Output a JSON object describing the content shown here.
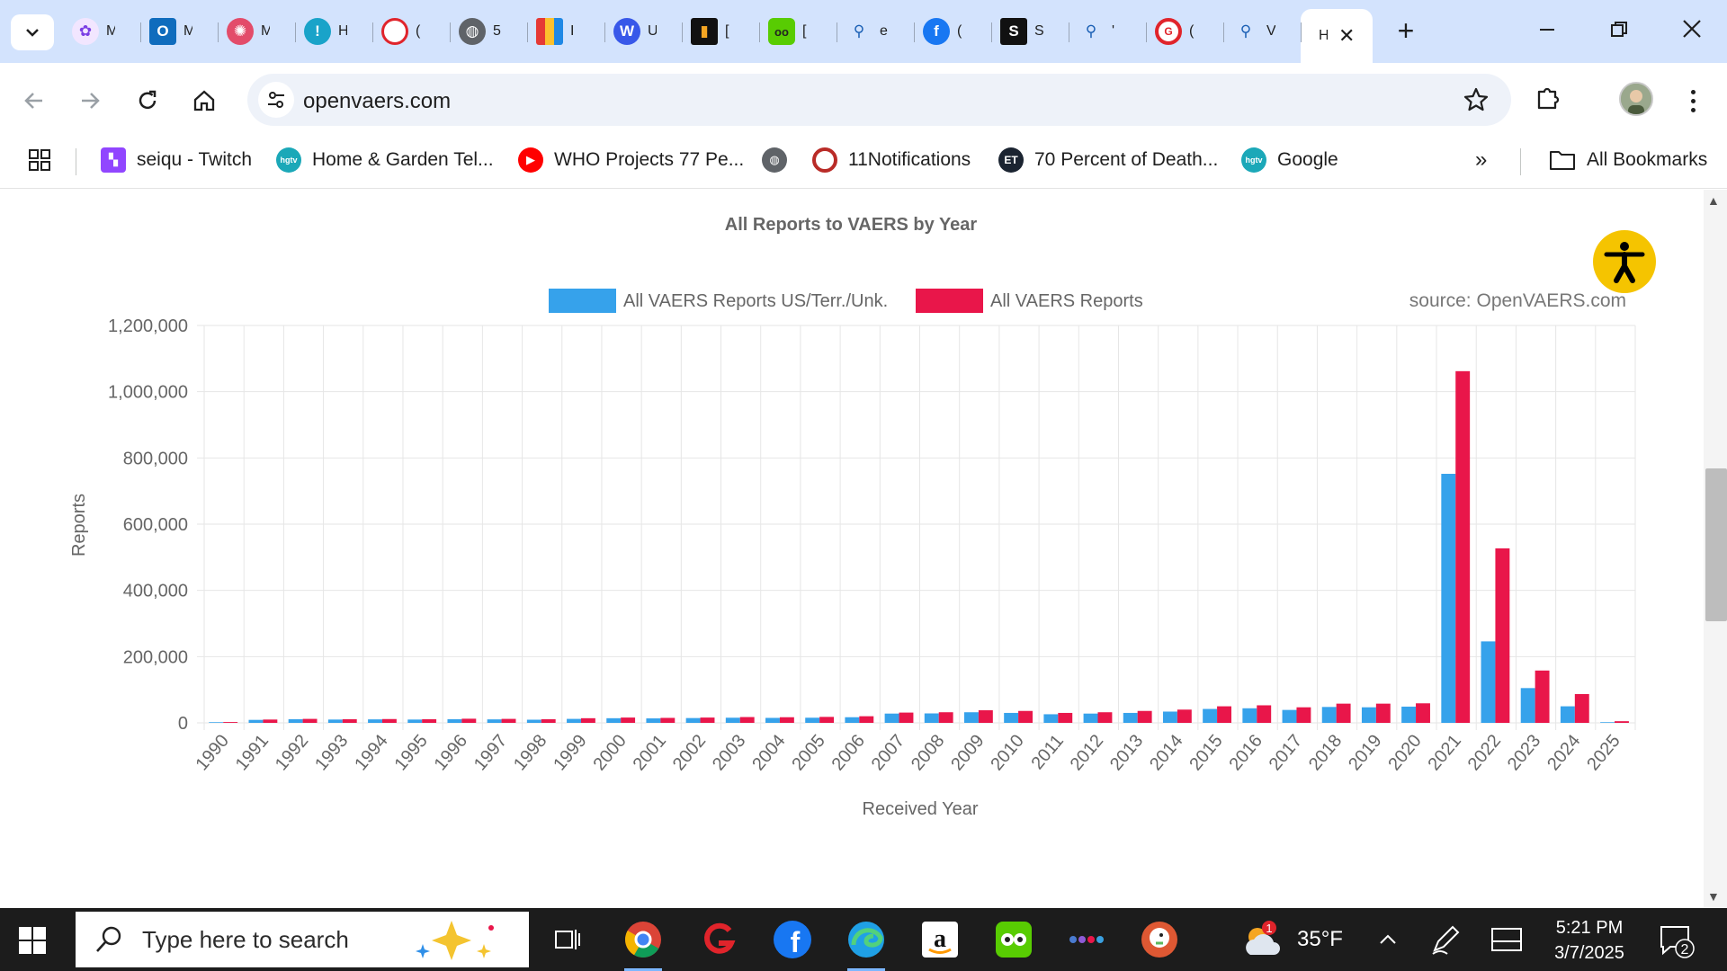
{
  "browser": {
    "tabs": [
      {
        "title": "M",
        "icon": "butterfly-icon"
      },
      {
        "title": "M",
        "icon": "outlook-icon"
      },
      {
        "title": "M",
        "icon": "virus-icon"
      },
      {
        "title": "H",
        "icon": "alert-icon"
      },
      {
        "title": "(",
        "icon": "speech-bubble-icon"
      },
      {
        "title": "5",
        "icon": "globe-icon"
      },
      {
        "title": "I",
        "icon": "shopping-bag-icon"
      },
      {
        "title": "U",
        "icon": "wordpress-icon"
      },
      {
        "title": "[",
        "icon": "candle-icon"
      },
      {
        "title": "[",
        "icon": "duolingo-icon"
      },
      {
        "title": "e",
        "icon": "search-icon"
      },
      {
        "title": "(",
        "icon": "facebook-icon"
      },
      {
        "title": "S",
        "icon": "substack-icon"
      },
      {
        "title": "'",
        "icon": "search-icon"
      },
      {
        "title": "(",
        "icon": "gettr-icon"
      },
      {
        "title": "V",
        "icon": "search-icon"
      }
    ],
    "active_tab": {
      "title": "H",
      "close": "✕"
    },
    "new_tab": "+",
    "url": "openvaers.com"
  },
  "bookmarks": {
    "items": [
      {
        "label": "seiqu - Twitch",
        "icon": "twitch-icon"
      },
      {
        "label": "Home & Garden Tel...",
        "icon": "hgtv-icon"
      },
      {
        "label": "WHO Projects 77 Pe...",
        "icon": "youtube-icon"
      },
      {
        "label": "",
        "icon": "globe-icon"
      },
      {
        "label": "11Notifications",
        "icon": "quora-icon"
      },
      {
        "label": "70 Percent of Death...",
        "icon": "epoch-times-icon"
      },
      {
        "label": "Google",
        "icon": "hgtv-icon"
      }
    ],
    "more": "»",
    "all_bookmarks": "All Bookmarks"
  },
  "chart_data": {
    "type": "bar",
    "title": "All Reports to VAERS by Year",
    "source": "source: OpenVAERS.com",
    "xlabel": "Received Year",
    "ylabel": "Reports",
    "ylim": [
      0,
      1200000
    ],
    "yticks": [
      0,
      200000,
      400000,
      600000,
      800000,
      1000000,
      1200000
    ],
    "ytick_labels": [
      "0",
      "200,000",
      "400,000",
      "600,000",
      "800,000",
      "1,000,000",
      "1,200,000"
    ],
    "grid": true,
    "legend_position": "top",
    "categories": [
      "1990",
      "1991",
      "1992",
      "1993",
      "1994",
      "1995",
      "1996",
      "1997",
      "1998",
      "1999",
      "2000",
      "2001",
      "2002",
      "2003",
      "2004",
      "2005",
      "2006",
      "2007",
      "2008",
      "2009",
      "2010",
      "2011",
      "2012",
      "2013",
      "2014",
      "2015",
      "2016",
      "2017",
      "2018",
      "2019",
      "2020",
      "2021",
      "2022",
      "2023",
      "2024",
      "2025"
    ],
    "series": [
      {
        "name": "All VAERS Reports US/Terr./Unk.",
        "color": "#36a2eb",
        "values": [
          2000,
          9000,
          11000,
          10000,
          10500,
          10000,
          11000,
          10500,
          9500,
          12000,
          14000,
          13500,
          14500,
          15500,
          15000,
          15500,
          17000,
          28000,
          28500,
          32000,
          30000,
          26000,
          28000,
          30000,
          34000,
          42000,
          44000,
          39000,
          48000,
          47000,
          49000,
          752000,
          246000,
          105000,
          50000,
          2000
        ]
      },
      {
        "name": "All VAERS Reports",
        "color": "#e9164a",
        "values": [
          2500,
          10000,
          12000,
          11000,
          11500,
          11000,
          12500,
          12000,
          11000,
          14000,
          16000,
          15000,
          16000,
          17500,
          17000,
          18000,
          20000,
          31000,
          32000,
          38000,
          36000,
          30000,
          32000,
          36000,
          40000,
          50000,
          53000,
          47000,
          58000,
          58000,
          59000,
          1062000,
          527000,
          158000,
          87000,
          5000
        ]
      }
    ]
  },
  "taskbar": {
    "search_placeholder": "Type here to search",
    "weather_temp": "35°F",
    "weather_badge": "1",
    "time": "5:21 PM",
    "date": "3/7/2025",
    "notification_count": "2"
  },
  "colors": {
    "tabstrip": "#d3e3fd",
    "accent_blue": "#36a2eb",
    "accent_red": "#e9164a"
  }
}
